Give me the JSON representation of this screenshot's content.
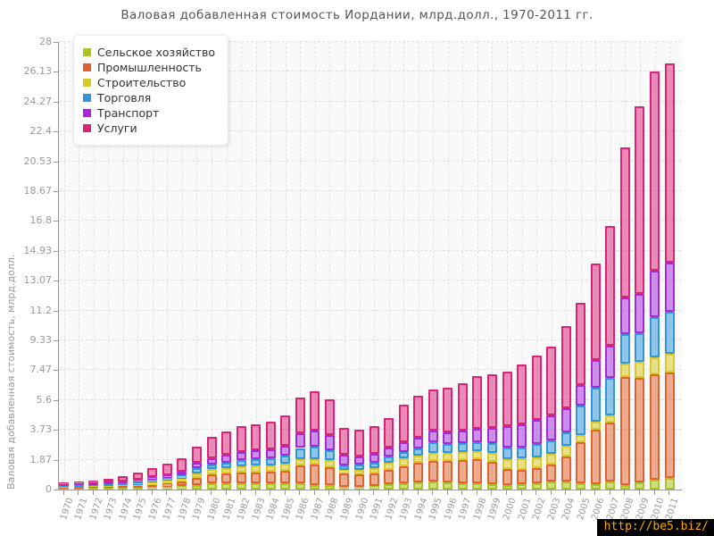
{
  "title": "Валовая добавленная стоимость Иордании, млрд.долл., 1970-2011 гг.",
  "y_axis": {
    "label": "Валовая добавленная стоимость, млрд.долл.",
    "ticks": [
      "0",
      "1.87",
      "3.73",
      "5.6",
      "7.47",
      "9.33",
      "11.2",
      "13.07",
      "14.93",
      "16.8",
      "18.67",
      "20.53",
      "22.4",
      "24.27",
      "26.13",
      "28"
    ]
  },
  "legend": {
    "items": [
      {
        "label": "Сельское хозяйство",
        "color": "#a8c420"
      },
      {
        "label": "Промышленность",
        "color": "#e2622b"
      },
      {
        "label": "Строительство",
        "color": "#d9c922"
      },
      {
        "label": "Торговля",
        "color": "#2e96d9"
      },
      {
        "label": "Транспорт",
        "color": "#a42ad9"
      },
      {
        "label": "Услуги",
        "color": "#db2277"
      }
    ]
  },
  "watermark": {
    "text": "http://be5.biz/",
    "bg": "#000000",
    "color": "#ffaa00"
  },
  "chart_data": {
    "type": "bar",
    "stacked": true,
    "title": "Валовая добавленная стоимость Иордании, млрд.долл., 1970-2011 гг.",
    "ylabel": "Валовая добавленная стоимость, млрд.долл.",
    "ylim": [
      0,
      28
    ],
    "grid": true,
    "legend_position": "top-left",
    "y_ticks": [
      0,
      1.87,
      3.73,
      5.6,
      7.47,
      9.33,
      11.2,
      13.07,
      14.93,
      16.8,
      18.67,
      20.53,
      22.4,
      24.27,
      26.13,
      28
    ],
    "categories": [
      1970,
      1971,
      1972,
      1973,
      1974,
      1975,
      1976,
      1977,
      1978,
      1979,
      1980,
      1981,
      1982,
      1983,
      1984,
      1985,
      1986,
      1987,
      1988,
      1989,
      1990,
      1991,
      1992,
      1993,
      1994,
      1995,
      1996,
      1997,
      1998,
      1999,
      2000,
      2001,
      2002,
      2003,
      2004,
      2005,
      2006,
      2007,
      2008,
      2009,
      2010,
      2011
    ],
    "series": [
      {
        "name": "Сельское хозяйство",
        "color": "#a8c420",
        "values": [
          0.08,
          0.08,
          0.09,
          0.1,
          0.1,
          0.1,
          0.15,
          0.18,
          0.22,
          0.3,
          0.39,
          0.38,
          0.4,
          0.4,
          0.38,
          0.38,
          0.4,
          0.26,
          0.26,
          0.15,
          0.17,
          0.2,
          0.34,
          0.37,
          0.45,
          0.49,
          0.45,
          0.41,
          0.37,
          0.34,
          0.3,
          0.34,
          0.41,
          0.49,
          0.5,
          0.4,
          0.35,
          0.49,
          0.3,
          0.45,
          0.6,
          0.75
        ]
      },
      {
        "name": "Промышленность",
        "color": "#e2622b",
        "values": [
          0.06,
          0.07,
          0.08,
          0.09,
          0.12,
          0.11,
          0.15,
          0.19,
          0.27,
          0.43,
          0.58,
          0.62,
          0.66,
          0.68,
          0.72,
          0.8,
          1.1,
          1.31,
          1.12,
          0.86,
          0.8,
          0.82,
          0.89,
          1.1,
          1.21,
          1.3,
          1.34,
          1.44,
          1.53,
          1.4,
          1.0,
          0.91,
          0.93,
          1.08,
          1.55,
          2.55,
          3.42,
          3.69,
          6.75,
          6.55,
          6.6,
          6.55
        ]
      },
      {
        "name": "Строительство",
        "color": "#d9c922",
        "values": [
          0.03,
          0.04,
          0.04,
          0.05,
          0.07,
          0.09,
          0.15,
          0.17,
          0.2,
          0.26,
          0.3,
          0.35,
          0.4,
          0.42,
          0.42,
          0.45,
          0.4,
          0.33,
          0.47,
          0.22,
          0.26,
          0.3,
          0.43,
          0.47,
          0.47,
          0.5,
          0.52,
          0.52,
          0.51,
          0.55,
          0.6,
          0.69,
          0.69,
          0.65,
          0.68,
          0.48,
          0.5,
          0.46,
          0.85,
          1.0,
          1.1,
          1.2
        ]
      },
      {
        "name": "Торговля",
        "color": "#2e96d9",
        "values": [
          0.06,
          0.07,
          0.08,
          0.09,
          0.12,
          0.15,
          0.15,
          0.17,
          0.19,
          0.34,
          0.3,
          0.35,
          0.38,
          0.4,
          0.42,
          0.48,
          0.7,
          0.79,
          0.59,
          0.3,
          0.34,
          0.38,
          0.43,
          0.41,
          0.46,
          0.69,
          0.53,
          0.52,
          0.56,
          0.62,
          0.71,
          0.71,
          0.81,
          0.84,
          0.85,
          1.85,
          2.11,
          2.34,
          1.8,
          1.8,
          2.5,
          2.6
        ]
      },
      {
        "name": "Транспорт",
        "color": "#a42ad9",
        "values": [
          0.06,
          0.07,
          0.08,
          0.1,
          0.12,
          0.15,
          0.17,
          0.2,
          0.26,
          0.34,
          0.41,
          0.48,
          0.52,
          0.55,
          0.58,
          0.65,
          0.9,
          1.02,
          0.99,
          0.64,
          0.52,
          0.55,
          0.56,
          0.62,
          0.66,
          0.69,
          0.74,
          0.79,
          0.83,
          0.95,
          1.35,
          1.43,
          1.52,
          1.58,
          1.5,
          1.25,
          1.72,
          2.04,
          2.3,
          2.45,
          2.9,
          3.1
        ]
      },
      {
        "name": "Услуги",
        "color": "#db2277",
        "values": [
          0.16,
          0.17,
          0.19,
          0.24,
          0.31,
          0.45,
          0.56,
          0.7,
          0.84,
          1.02,
          1.3,
          1.47,
          1.59,
          1.65,
          1.73,
          1.89,
          2.25,
          2.44,
          2.22,
          1.68,
          1.66,
          1.7,
          1.8,
          2.33,
          2.6,
          2.58,
          2.82,
          2.97,
          3.3,
          3.34,
          3.44,
          3.72,
          4.04,
          4.31,
          5.17,
          5.17,
          6.05,
          7.48,
          9.4,
          11.75,
          12.45,
          12.45
        ]
      }
    ]
  }
}
